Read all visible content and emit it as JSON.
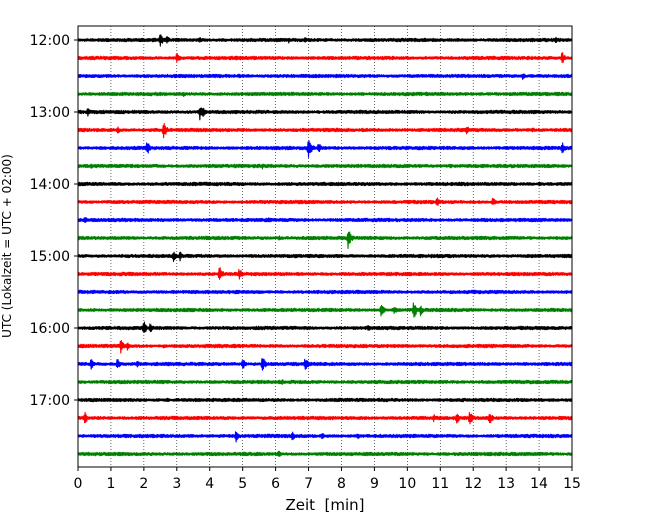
{
  "chart_data": {
    "type": "line",
    "chart_kind": "helicorder seismogram",
    "xlabel": "Zeit  [min]",
    "ylabel": "UTC (Lokalzeit = UTC + 02:00)",
    "xlim": [
      0,
      15
    ],
    "x_ticks": [
      "0",
      "1",
      "2",
      "3",
      "4",
      "5",
      "6",
      "7",
      "8",
      "9",
      "10",
      "11",
      "12",
      "13",
      "14",
      "15"
    ],
    "y_tick_labels": [
      "12:00",
      "13:00",
      "14:00",
      "15:00",
      "16:00",
      "17:00"
    ],
    "grid": "vertical dotted",
    "line_colors": [
      "#000000",
      "#ff0000",
      "#0000ff",
      "#008000"
    ],
    "traces": [
      {
        "start": "12:00",
        "events": [
          [
            2.5,
            7
          ],
          [
            2.7,
            5
          ],
          [
            3.7,
            4
          ],
          [
            6.4,
            3
          ],
          [
            6.9,
            3
          ],
          [
            14.5,
            4
          ]
        ]
      },
      {
        "start": "12:15",
        "events": [
          [
            3.0,
            6
          ],
          [
            14.7,
            7
          ]
        ]
      },
      {
        "start": "12:30",
        "events": [
          [
            4.9,
            3
          ],
          [
            13.5,
            4
          ]
        ]
      },
      {
        "start": "12:45",
        "events": [
          [
            3.2,
            3
          ]
        ]
      },
      {
        "start": "13:00",
        "events": [
          [
            0.3,
            5
          ],
          [
            3.7,
            8
          ],
          [
            3.8,
            5
          ]
        ]
      },
      {
        "start": "13:15",
        "events": [
          [
            1.2,
            4
          ],
          [
            2.6,
            9
          ],
          [
            11.8,
            5
          ],
          [
            13.8,
            3
          ]
        ]
      },
      {
        "start": "13:30",
        "events": [
          [
            2.1,
            8
          ],
          [
            7.0,
            11
          ],
          [
            7.3,
            6
          ],
          [
            14.7,
            7
          ]
        ]
      },
      {
        "start": "13:45",
        "events": [
          [
            0.4,
            3
          ],
          [
            5.6,
            3
          ],
          [
            11.3,
            3
          ]
        ]
      },
      {
        "start": "14:00",
        "events": [
          [
            14.0,
            3
          ]
        ]
      },
      {
        "start": "14:15",
        "events": [
          [
            10.9,
            5
          ],
          [
            12.6,
            5
          ]
        ]
      },
      {
        "start": "14:30",
        "events": [
          [
            0.2,
            4
          ],
          [
            5.8,
            3
          ]
        ]
      },
      {
        "start": "14:45",
        "events": [
          [
            6.1,
            3
          ],
          [
            8.2,
            11
          ]
        ]
      },
      {
        "start": "15:00",
        "events": [
          [
            2.9,
            7
          ],
          [
            3.1,
            5
          ]
        ]
      },
      {
        "start": "15:15",
        "events": [
          [
            4.3,
            8
          ],
          [
            4.9,
            7
          ]
        ]
      },
      {
        "start": "15:30",
        "events": [
          [
            1.3,
            2
          ]
        ]
      },
      {
        "start": "15:45",
        "events": [
          [
            9.2,
            7
          ],
          [
            9.6,
            5
          ],
          [
            10.2,
            10
          ],
          [
            10.4,
            6
          ]
        ]
      },
      {
        "start": "16:00",
        "events": [
          [
            2.0,
            8
          ],
          [
            2.2,
            6
          ],
          [
            8.8,
            4
          ]
        ]
      },
      {
        "start": "16:15",
        "events": [
          [
            1.3,
            8
          ],
          [
            1.5,
            5
          ],
          [
            2.6,
            3
          ]
        ]
      },
      {
        "start": "16:30",
        "events": [
          [
            0.4,
            6
          ],
          [
            1.2,
            6
          ],
          [
            1.8,
            4
          ],
          [
            5.0,
            6
          ],
          [
            5.6,
            9
          ],
          [
            6.9,
            8
          ]
        ]
      },
      {
        "start": "16:45",
        "events": [
          [
            6.2,
            3
          ],
          [
            7.8,
            2
          ]
        ]
      },
      {
        "start": "17:00",
        "events": [
          [
            2.7,
            3
          ]
        ]
      },
      {
        "start": "17:15",
        "events": [
          [
            0.2,
            7
          ],
          [
            10.8,
            4
          ],
          [
            11.5,
            6
          ],
          [
            11.9,
            8
          ],
          [
            12.5,
            7
          ]
        ]
      },
      {
        "start": "17:30",
        "events": [
          [
            4.8,
            6
          ],
          [
            6.5,
            5
          ],
          [
            7.4,
            4
          ],
          [
            8.5,
            3
          ]
        ]
      },
      {
        "start": "17:45",
        "events": [
          [
            6.1,
            4
          ]
        ]
      }
    ]
  }
}
